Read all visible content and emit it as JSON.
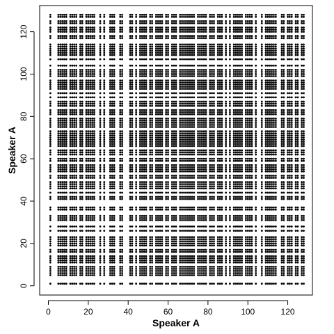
{
  "chart_data": {
    "type": "scatter",
    "xlabel": "Speaker A",
    "ylabel": "Speaker A",
    "xlim": [
      -4.36,
      132.36
    ],
    "ylim": [
      -4.36,
      132.36
    ],
    "x_ticks": [
      0,
      20,
      40,
      60,
      80,
      100,
      120
    ],
    "y_ticks": [
      0,
      20,
      40,
      60,
      80,
      100,
      120
    ],
    "grid": false,
    "legend": "none",
    "point_color": "#000000",
    "point_shape": "filled-circle",
    "x": [
      1,
      5,
      6,
      7,
      8,
      9,
      11,
      12,
      13,
      14,
      16,
      17,
      19,
      20,
      21,
      22,
      23,
      26,
      28,
      31,
      32,
      33,
      36,
      37,
      41,
      42,
      44,
      46,
      47,
      48,
      49,
      51,
      52,
      54,
      55,
      56,
      57,
      59,
      60,
      62,
      63,
      64,
      66,
      67,
      68,
      69,
      70,
      71,
      72,
      73,
      75,
      76,
      77,
      78,
      79,
      81,
      82,
      83,
      85,
      86,
      87,
      89,
      91,
      93,
      94,
      95,
      96,
      97,
      99,
      100,
      101,
      102,
      104,
      107,
      109,
      110,
      111,
      112,
      113,
      114,
      117,
      118,
      120,
      121,
      122,
      124,
      125,
      127,
      128
    ],
    "y": [
      1,
      5,
      6,
      7,
      8,
      9,
      11,
      12,
      13,
      14,
      16,
      17,
      19,
      20,
      21,
      22,
      23,
      26,
      28,
      31,
      32,
      33,
      36,
      37,
      41,
      42,
      44,
      46,
      47,
      48,
      49,
      51,
      52,
      54,
      55,
      56,
      57,
      59,
      60,
      62,
      63,
      64,
      66,
      67,
      68,
      69,
      70,
      71,
      72,
      73,
      75,
      76,
      77,
      78,
      79,
      81,
      82,
      83,
      85,
      86,
      87,
      89,
      91,
      93,
      94,
      95,
      96,
      97,
      99,
      100,
      101,
      102,
      104,
      107,
      109,
      110,
      111,
      112,
      113,
      114,
      117,
      118,
      120,
      121,
      122,
      124,
      125,
      127,
      128
    ],
    "points_description": "full grid: every x value paired with every y value"
  }
}
